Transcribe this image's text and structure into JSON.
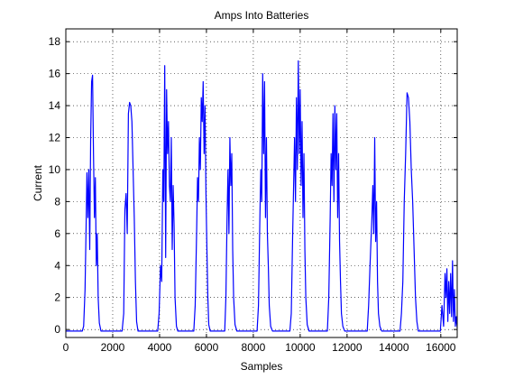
{
  "chart_data": {
    "type": "line",
    "title": "Amps Into Batteries",
    "xlabel": "Samples",
    "ylabel": "Current",
    "xlim": [
      0,
      16700
    ],
    "ylim": [
      -0.5,
      18.8
    ],
    "grid": true,
    "x_ticks": [
      0,
      2000,
      4000,
      6000,
      8000,
      10000,
      12000,
      14000,
      16000
    ],
    "y_ticks": [
      0,
      2,
      4,
      6,
      8,
      10,
      12,
      14,
      16,
      18
    ],
    "series": [
      {
        "color": "#0000ff",
        "x": [
          0,
          700,
          760,
          820,
          860,
          900,
          940,
          980,
          1020,
          1060,
          1100,
          1140,
          1180,
          1220,
          1260,
          1300,
          1340,
          1380,
          1430,
          1500,
          1560,
          2400,
          2470,
          2520,
          2570,
          2620,
          2670,
          2720,
          2770,
          2820,
          2870,
          2920,
          2970,
          3020,
          3080,
          3160,
          3920,
          3980,
          4040,
          4090,
          4140,
          4180,
          4220,
          4260,
          4300,
          4340,
          4380,
          4420,
          4460,
          4500,
          4540,
          4580,
          4620,
          4660,
          4720,
          4780,
          5460,
          5520,
          5580,
          5620,
          5660,
          5700,
          5740,
          5780,
          5820,
          5860,
          5900,
          5940,
          5980,
          6020,
          6060,
          6100,
          6160,
          6780,
          6830,
          6880,
          6920,
          6960,
          7000,
          7040,
          7080,
          7120,
          7160,
          7220,
          7300,
          8160,
          8220,
          8280,
          8320,
          8360,
          8400,
          8440,
          8480,
          8520,
          8560,
          8600,
          8640,
          8680,
          8740,
          8820,
          9560,
          9620,
          9680,
          9720,
          9760,
          9800,
          9840,
          9880,
          9920,
          9960,
          10000,
          10040,
          10080,
          10120,
          10160,
          10200,
          10240,
          10300,
          10380,
          11160,
          11220,
          11280,
          11320,
          11360,
          11400,
          11440,
          11480,
          11520,
          11560,
          11600,
          11640,
          11680,
          11720,
          11760,
          11820,
          11900,
          12860,
          12920,
          12980,
          13020,
          13060,
          13100,
          13140,
          13180,
          13220,
          13260,
          13300,
          13340,
          13400,
          13480,
          14260,
          14320,
          14380,
          14440,
          14500,
          14560,
          14620,
          14680,
          14740,
          14800,
          14860,
          14920,
          14980,
          15040,
          15100,
          15980,
          16050,
          16120,
          16180,
          16220,
          16260,
          16300,
          16340,
          16380,
          16420,
          16460,
          16500,
          16540,
          16580,
          16620,
          16660,
          16700
        ],
        "y": [
          -0.1,
          -0.1,
          0.2,
          2.5,
          6.0,
          9.8,
          7.0,
          10.0,
          5.0,
          12.0,
          15.5,
          15.9,
          11.0,
          7.0,
          9.5,
          4.0,
          6.0,
          2.0,
          0.4,
          -0.1,
          -0.1,
          -0.1,
          1.0,
          7.5,
          8.5,
          6.0,
          13.5,
          14.2,
          14.0,
          13.0,
          10.0,
          7.0,
          3.0,
          0.5,
          -0.1,
          -0.1,
          -0.1,
          1.0,
          4.0,
          3.0,
          10.0,
          8.0,
          16.5,
          4.5,
          15.0,
          11.0,
          13.0,
          9.0,
          8.0,
          12.0,
          5.0,
          9.0,
          6.5,
          2.0,
          0.2,
          -0.1,
          -0.1,
          1.5,
          6.0,
          9.5,
          8.0,
          12.0,
          10.0,
          14.5,
          13.0,
          15.5,
          11.0,
          14.0,
          8.5,
          5.0,
          2.0,
          0.3,
          -0.1,
          -0.1,
          2.0,
          7.0,
          10.0,
          6.0,
          12.0,
          9.0,
          11.0,
          5.0,
          2.0,
          0.3,
          -0.1,
          -0.1,
          1.5,
          7.0,
          10.0,
          8.0,
          16.0,
          11.0,
          15.5,
          7.0,
          12.0,
          6.0,
          4.0,
          1.5,
          0.2,
          -0.1,
          -0.1,
          1.0,
          6.0,
          9.0,
          12.0,
          8.0,
          14.5,
          10.0,
          16.8,
          11.0,
          15.0,
          9.0,
          13.0,
          7.0,
          11.0,
          5.0,
          2.0,
          0.3,
          -0.1,
          -0.1,
          2.0,
          7.0,
          11.0,
          9.0,
          13.5,
          8.0,
          14.0,
          10.0,
          13.5,
          7.0,
          11.0,
          5.5,
          3.0,
          1.0,
          0.2,
          -0.1,
          -0.1,
          1.5,
          4.0,
          5.5,
          7.0,
          9.0,
          6.0,
          12.0,
          5.5,
          8.0,
          3.0,
          1.0,
          0.2,
          -0.1,
          -0.1,
          1.0,
          3.0,
          8.0,
          11.0,
          14.8,
          14.5,
          13.0,
          10.0,
          8.0,
          5.0,
          2.0,
          0.5,
          -0.1,
          -0.1,
          -0.1,
          1.5,
          0.2,
          3.5,
          2.0,
          3.8,
          0.5,
          3.0,
          1.0,
          3.5,
          0.8,
          4.3,
          0.5,
          2.5,
          0.2,
          0.8,
          0.1
        ]
      }
    ]
  }
}
